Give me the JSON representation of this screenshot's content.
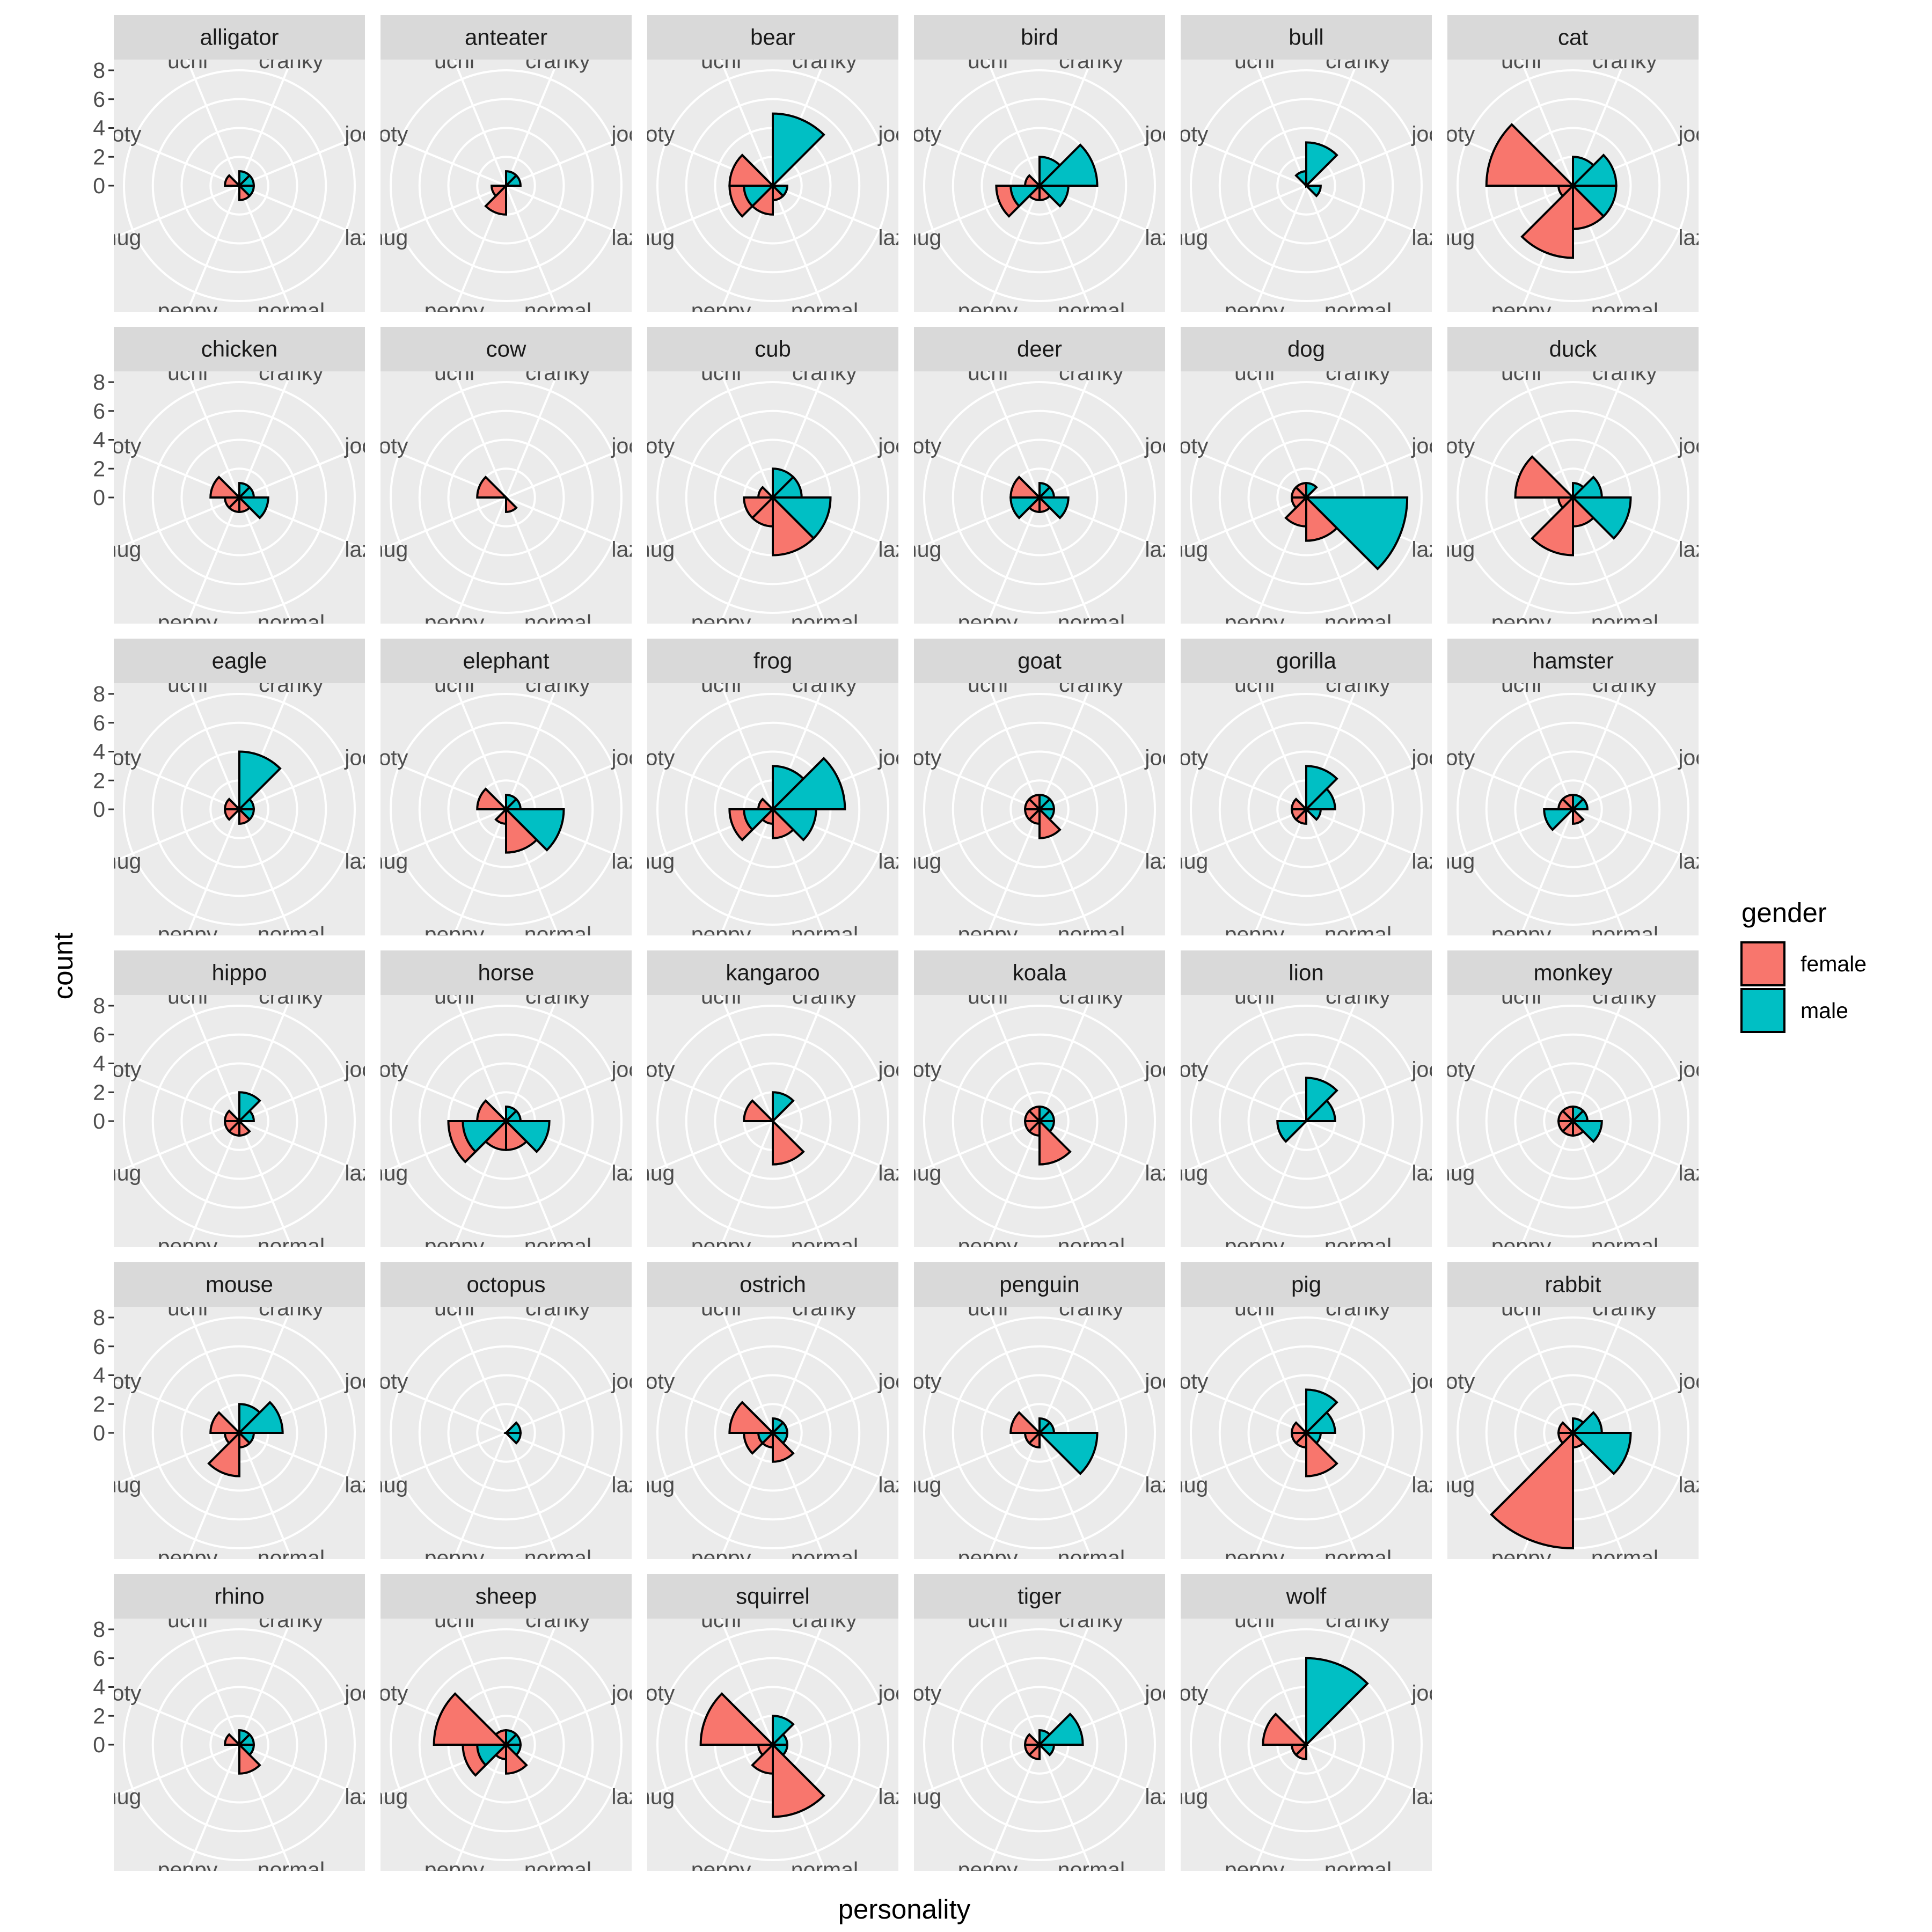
{
  "chart_data": {
    "type": "bar",
    "coord": "polar",
    "xlabel": "personality",
    "ylabel": "count",
    "ylim": [
      0,
      8
    ],
    "y_ticks": [
      "0",
      "2",
      "4",
      "6",
      "8"
    ],
    "grid": true,
    "legend_position": "right",
    "legend": {
      "title": "gender",
      "entries": [
        {
          "key": "female",
          "label": "female",
          "color": "#F8766D"
        },
        {
          "key": "male",
          "label": "male",
          "color": "#00BFC4"
        }
      ]
    },
    "categories": [
      "cranky",
      "jock",
      "lazy",
      "normal",
      "peppy",
      "smug",
      "snooty",
      "uchi"
    ],
    "category_labels": [
      "cranky",
      "jock",
      "lazy",
      "normal",
      "peppy",
      "smug",
      "nooty",
      "uchi"
    ],
    "panels": [
      {
        "name": "alligator",
        "female": [
          0,
          0,
          0,
          1,
          0,
          0,
          1,
          0
        ],
        "male": [
          1,
          1,
          1,
          0,
          0,
          0,
          0,
          0
        ]
      },
      {
        "name": "anteater",
        "female": [
          0,
          0,
          0,
          0,
          2,
          1,
          0,
          0
        ],
        "male": [
          1,
          1,
          0,
          0,
          0,
          0,
          0,
          0
        ]
      },
      {
        "name": "bear",
        "female": [
          0,
          0,
          0,
          1,
          2,
          1,
          3,
          0
        ],
        "male": [
          5,
          0,
          1,
          0,
          0,
          2,
          0,
          0
        ]
      },
      {
        "name": "bird",
        "female": [
          0,
          0,
          0,
          1,
          1,
          1,
          1,
          0
        ],
        "male": [
          2,
          4,
          2,
          0,
          0,
          2,
          0,
          0
        ]
      },
      {
        "name": "bull",
        "female": [
          0,
          0,
          0,
          0,
          0,
          0,
          0,
          0
        ],
        "male": [
          3,
          0,
          1,
          0,
          0,
          0,
          0,
          1
        ]
      },
      {
        "name": "cat",
        "female": [
          0,
          0,
          0,
          3,
          5,
          1,
          6,
          0
        ],
        "male": [
          2,
          3,
          3,
          0,
          0,
          0,
          0,
          0
        ]
      },
      {
        "name": "chicken",
        "female": [
          0,
          0,
          0,
          1,
          1,
          1,
          2,
          0
        ],
        "male": [
          1,
          1,
          2,
          0,
          0,
          0,
          0,
          0
        ]
      },
      {
        "name": "cow",
        "female": [
          0,
          0,
          0,
          1,
          0,
          0,
          2,
          0
        ],
        "male": [
          0,
          0,
          0,
          0,
          0,
          0,
          0,
          0
        ]
      },
      {
        "name": "cub",
        "female": [
          0,
          0,
          0,
          4,
          2,
          2,
          1,
          0
        ],
        "male": [
          2,
          2,
          4,
          0,
          0,
          0,
          0,
          0
        ]
      },
      {
        "name": "deer",
        "female": [
          0,
          0,
          0,
          1,
          1,
          0,
          2,
          0
        ],
        "male": [
          1,
          1,
          2,
          0,
          0,
          2,
          0,
          0
        ]
      },
      {
        "name": "dog",
        "female": [
          0,
          0,
          0,
          3,
          2,
          1,
          1,
          1
        ],
        "male": [
          1,
          0,
          7,
          0,
          0,
          0,
          0,
          0
        ]
      },
      {
        "name": "duck",
        "female": [
          0,
          0,
          0,
          2,
          4,
          1,
          4,
          0
        ],
        "male": [
          1,
          2,
          4,
          0,
          0,
          0,
          0,
          0
        ]
      },
      {
        "name": "eagle",
        "female": [
          0,
          0,
          0,
          1,
          0,
          1,
          1,
          0
        ],
        "male": [
          4,
          1,
          1,
          0,
          0,
          0,
          0,
          0
        ]
      },
      {
        "name": "elephant",
        "female": [
          0,
          0,
          0,
          3,
          1,
          0,
          2,
          0
        ],
        "male": [
          1,
          1,
          4,
          0,
          0,
          0,
          0,
          0
        ]
      },
      {
        "name": "frog",
        "female": [
          0,
          0,
          0,
          2,
          1,
          1,
          1,
          0
        ],
        "male": [
          3,
          5,
          3,
          0,
          0,
          2,
          0,
          0
        ]
      },
      {
        "name": "goat",
        "female": [
          0,
          0,
          0,
          2,
          1,
          1,
          1,
          1
        ],
        "male": [
          1,
          1,
          1,
          0,
          0,
          0,
          0,
          0
        ]
      },
      {
        "name": "gorilla",
        "female": [
          0,
          0,
          0,
          0,
          1,
          1,
          1,
          0
        ],
        "male": [
          3,
          2,
          1,
          0,
          0,
          0,
          0,
          0
        ]
      },
      {
        "name": "hamster",
        "female": [
          0,
          0,
          0,
          1,
          0,
          0,
          1,
          1
        ],
        "male": [
          1,
          1,
          0,
          0,
          0,
          2,
          0,
          0
        ]
      },
      {
        "name": "hippo",
        "female": [
          0,
          0,
          0,
          1,
          1,
          1,
          1,
          0
        ],
        "male": [
          2,
          1,
          0,
          0,
          0,
          0,
          0,
          0
        ]
      },
      {
        "name": "horse",
        "female": [
          0,
          0,
          0,
          2,
          2,
          1,
          2,
          0
        ],
        "male": [
          1,
          1,
          3,
          0,
          0,
          3,
          0,
          0
        ]
      },
      {
        "name": "kangaroo",
        "female": [
          0,
          0,
          0,
          3,
          0,
          0,
          2,
          0
        ],
        "male": [
          2,
          0,
          0,
          0,
          0,
          0,
          0,
          0
        ]
      },
      {
        "name": "koala",
        "female": [
          0,
          0,
          0,
          3,
          1,
          1,
          1,
          1
        ],
        "male": [
          1,
          1,
          1,
          0,
          0,
          0,
          0,
          0
        ]
      },
      {
        "name": "lion",
        "female": [
          0,
          0,
          0,
          0,
          0,
          0,
          0,
          0
        ],
        "male": [
          3,
          2,
          0,
          0,
          0,
          2,
          0,
          0
        ]
      },
      {
        "name": "monkey",
        "female": [
          0,
          0,
          0,
          1,
          1,
          1,
          1,
          1
        ],
        "male": [
          1,
          1,
          2,
          0,
          0,
          0,
          0,
          0
        ]
      },
      {
        "name": "mouse",
        "female": [
          0,
          0,
          0,
          1,
          3,
          1,
          2,
          0
        ],
        "male": [
          2,
          3,
          1,
          0,
          0,
          0,
          0,
          0
        ]
      },
      {
        "name": "octopus",
        "female": [
          0,
          0,
          0,
          0,
          0,
          0,
          0,
          0
        ],
        "male": [
          0,
          1,
          1,
          0,
          0,
          0,
          0,
          0
        ]
      },
      {
        "name": "ostrich",
        "female": [
          0,
          0,
          0,
          2,
          1,
          1,
          3,
          0
        ],
        "male": [
          1,
          1,
          1,
          0,
          0,
          1,
          0,
          0
        ]
      },
      {
        "name": "penguin",
        "female": [
          0,
          0,
          0,
          0,
          1,
          1,
          2,
          0
        ],
        "male": [
          1,
          1,
          4,
          0,
          0,
          0,
          0,
          0
        ]
      },
      {
        "name": "pig",
        "female": [
          0,
          0,
          0,
          3,
          1,
          1,
          1,
          0
        ],
        "male": [
          3,
          2,
          1,
          0,
          0,
          0,
          0,
          0
        ]
      },
      {
        "name": "rabbit",
        "female": [
          0,
          0,
          0,
          1,
          8,
          1,
          1,
          0
        ],
        "male": [
          1,
          2,
          4,
          0,
          0,
          0,
          0,
          0
        ]
      },
      {
        "name": "rhino",
        "female": [
          0,
          0,
          0,
          2,
          0,
          0,
          1,
          0
        ],
        "male": [
          1,
          1,
          1,
          0,
          0,
          0,
          0,
          0
        ]
      },
      {
        "name": "sheep",
        "female": [
          0,
          0,
          0,
          2,
          1,
          1,
          5,
          1
        ],
        "male": [
          1,
          1,
          1,
          0,
          0,
          2,
          0,
          0
        ]
      },
      {
        "name": "squirrel",
        "female": [
          0,
          0,
          0,
          5,
          2,
          1,
          5,
          0
        ],
        "male": [
          2,
          1,
          1,
          0,
          0,
          0,
          0,
          0
        ]
      },
      {
        "name": "tiger",
        "female": [
          0,
          0,
          0,
          0,
          1,
          1,
          1,
          0
        ],
        "male": [
          1,
          3,
          1,
          0,
          0,
          0,
          0,
          0
        ]
      },
      {
        "name": "wolf",
        "female": [
          0,
          0,
          0,
          0,
          1,
          1,
          3,
          0
        ],
        "male": [
          6,
          0,
          0,
          0,
          0,
          0,
          0,
          0
        ]
      }
    ]
  }
}
